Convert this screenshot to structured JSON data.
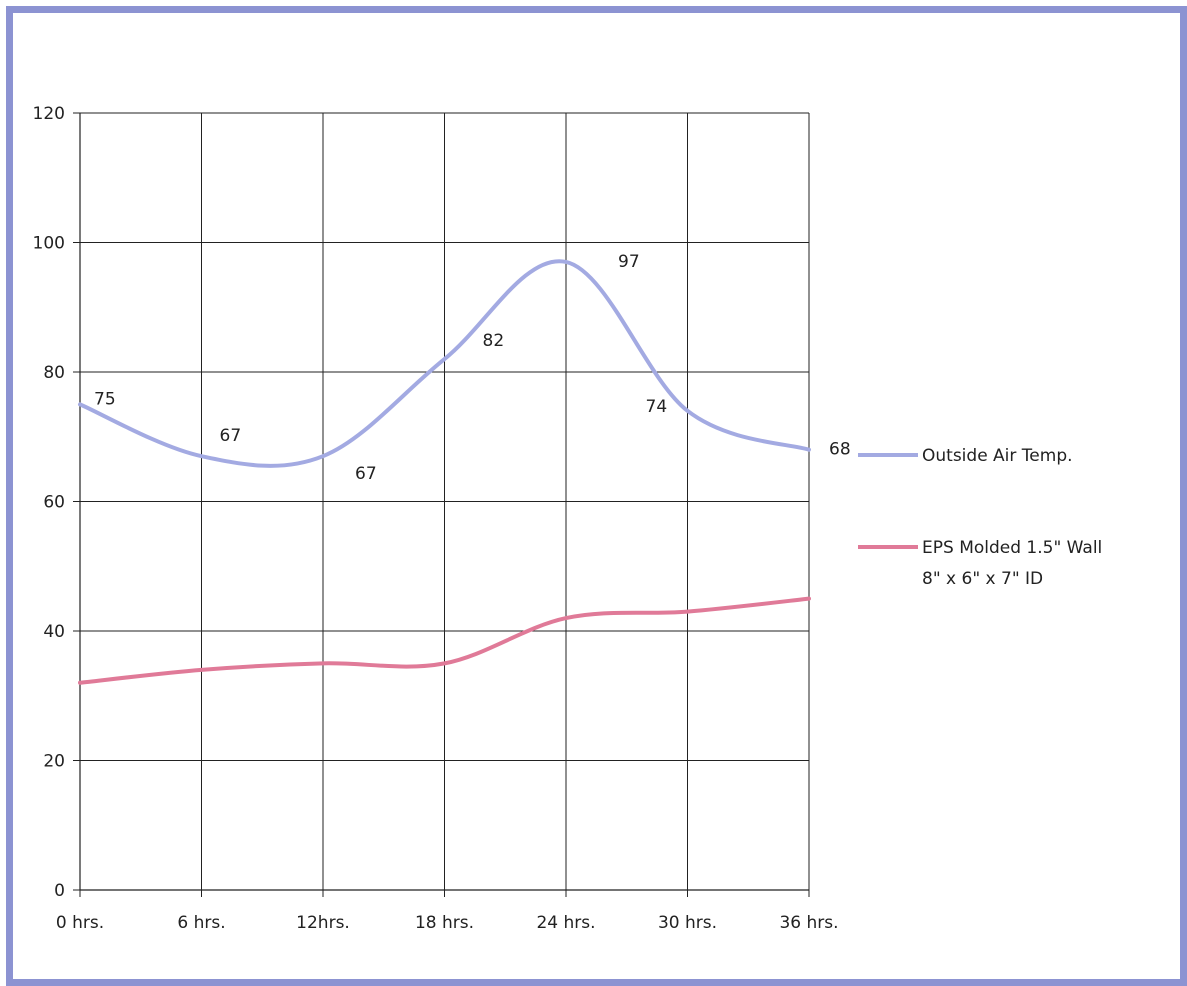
{
  "chart_data": {
    "type": "line",
    "categories": [
      "0 hrs.",
      "6 hrs.",
      "12hrs.",
      "18 hrs.",
      "24 hrs.",
      "30 hrs.",
      "36 hrs."
    ],
    "ylim": [
      0,
      120
    ],
    "yticks": [
      "0",
      "20",
      "40",
      "60",
      "80",
      "100",
      "120"
    ],
    "grid": true,
    "legend_position": "right",
    "series": [
      {
        "name": "Outside Air Temp.",
        "values": [
          75,
          67,
          67,
          82,
          97,
          74,
          68
        ],
        "data_labels": [
          "75",
          "67",
          "67",
          "82",
          "97",
          "74",
          "68"
        ],
        "color": "#a3aae2"
      },
      {
        "name": "EPS Molded 1.5\" Wall",
        "name_line2": "8\" x 6\" x 7\"  ID",
        "values": [
          32,
          34,
          35,
          35,
          42,
          43,
          45
        ],
        "color": "#e07a98"
      }
    ]
  }
}
